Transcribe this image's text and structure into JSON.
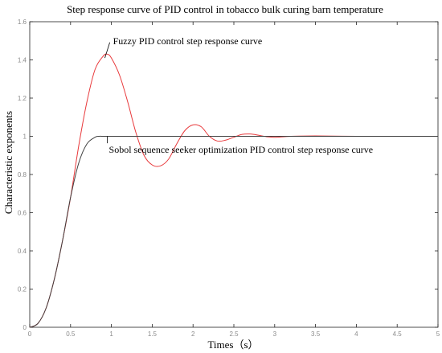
{
  "chart_data": {
    "type": "line",
    "title": "Step response curve of PID control in tobacco bulk curing barn temperature",
    "xlabel": "Times（s）",
    "ylabel": "Characteristic exponents",
    "xlim": [
      0,
      5
    ],
    "ylim": [
      0,
      1.6
    ],
    "xticks": [
      0,
      0.5,
      1,
      1.5,
      2,
      2.5,
      3,
      3.5,
      4,
      4.5,
      5
    ],
    "xtick_labels": [
      "0",
      "0.5",
      "1",
      "1.5",
      "2",
      "2.5",
      "3",
      "3.5",
      "4",
      "4.5",
      "5"
    ],
    "yticks": [
      0,
      0.2,
      0.4,
      0.6,
      0.8,
      1,
      1.2,
      1.4,
      1.6
    ],
    "ytick_labels": [
      "0",
      "0.2",
      "0.4",
      "0.6",
      "0.8",
      "1",
      "1.2",
      "1.4",
      "1.6"
    ],
    "grid": false,
    "series": [
      {
        "color": "#e8393b",
        "x": [
          0,
          0.1,
          0.2,
          0.3,
          0.4,
          0.5,
          0.6,
          0.7,
          0.8,
          0.9,
          0.95,
          1.0,
          1.1,
          1.2,
          1.3,
          1.4,
          1.5,
          1.6,
          1.7,
          1.8,
          1.9,
          2.0,
          2.1,
          2.2,
          2.3,
          2.4,
          2.5,
          2.6,
          2.7,
          2.8,
          2.9,
          3.0,
          3.2,
          3.5,
          4.0,
          4.5,
          5.0
        ],
        "y": [
          0,
          0.02,
          0.1,
          0.25,
          0.45,
          0.68,
          0.95,
          1.18,
          1.35,
          1.42,
          1.43,
          1.41,
          1.32,
          1.18,
          1.02,
          0.9,
          0.85,
          0.845,
          0.88,
          0.96,
          1.03,
          1.06,
          1.05,
          1.0,
          0.975,
          0.98,
          0.995,
          1.01,
          1.012,
          1.006,
          0.998,
          0.995,
          1.0,
          1.002,
          1.0,
          1.0,
          1.0
        ]
      },
      {
        "color": "#404040",
        "x": [
          0,
          0.1,
          0.2,
          0.3,
          0.4,
          0.5,
          0.6,
          0.7,
          0.8,
          0.85,
          0.9,
          1.0,
          1.5,
          2.0,
          3.0,
          4.0,
          5.0
        ],
        "y": [
          0,
          0.02,
          0.1,
          0.25,
          0.45,
          0.68,
          0.86,
          0.96,
          0.995,
          1.0,
          1.0,
          1.0,
          1.0,
          1.0,
          1.0,
          1.0,
          1.0
        ]
      }
    ],
    "annotations": [
      {
        "text": "Fuzzy PID control step response curve",
        "x": 1.0,
        "y": 1.5,
        "leader_to": [
          0.92,
          1.41
        ]
      },
      {
        "text": "Sobol sequence seeker optimization PID control step response curve",
        "x": 0.95,
        "y": 0.93,
        "leader_to": [
          0.95,
          1.0
        ]
      }
    ]
  }
}
